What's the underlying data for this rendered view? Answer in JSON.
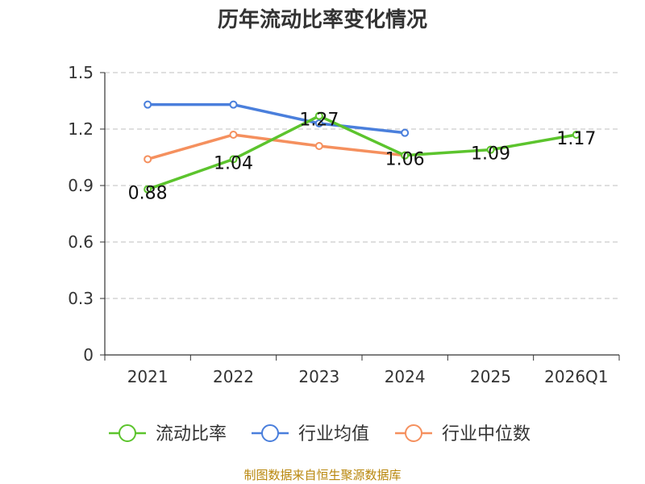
{
  "chart_data": {
    "type": "line",
    "title": "历年流动比率变化情况",
    "categories": [
      "2021",
      "2022",
      "2023",
      "2024",
      "2025",
      "2026Q1"
    ],
    "ylim": [
      0,
      1.5
    ],
    "yticks": [
      "0",
      "0.3",
      "0.6",
      "0.9",
      "1.2",
      "1.5"
    ],
    "ytick_values": [
      0,
      0.3,
      0.6,
      0.9,
      1.2,
      1.5
    ],
    "grid": true,
    "legend_position": "bottom",
    "series": [
      {
        "name": "流动比率",
        "color": "#5cc42d",
        "values": [
          0.88,
          1.04,
          1.27,
          1.06,
          1.09,
          1.17
        ],
        "labels": [
          "0.88",
          "1.04",
          "1.27",
          "1.06",
          "1.09",
          "1.17"
        ]
      },
      {
        "name": "行业均值",
        "color": "#4a7fdc",
        "values": [
          1.33,
          1.33,
          1.23,
          1.18,
          null,
          null
        ]
      },
      {
        "name": "行业中位数",
        "color": "#f5905e",
        "values": [
          1.04,
          1.17,
          1.11,
          1.06,
          null,
          null
        ]
      }
    ]
  },
  "source": "制图数据来自恒生聚源数据库"
}
